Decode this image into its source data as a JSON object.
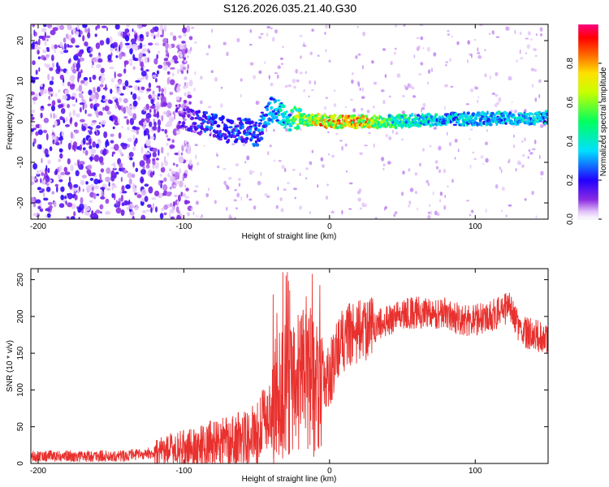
{
  "title": "S126.2026.035.21.40.G30",
  "chart_data": [
    {
      "type": "heatmap",
      "xlabel": "Height of straight line (km)",
      "ylabel": "Frequency (Hz)",
      "xlim": [
        -205,
        150
      ],
      "ylim": [
        -24,
        24
      ],
      "x_ticks": [
        -200,
        -100,
        0,
        100
      ],
      "y_ticks": [
        -20,
        -10,
        0,
        10,
        20
      ],
      "colorbar": {
        "label": "Normalized spectral amplitude",
        "range": [
          0.0,
          1.0
        ],
        "ticks": [
          0.0,
          0.2,
          0.4,
          0.6,
          0.8
        ]
      },
      "ridge": {
        "x": [
          -100,
          -90,
          -80,
          -70,
          -60,
          -50,
          -40,
          -35,
          -30,
          -20,
          -10,
          0,
          20,
          40,
          60,
          80,
          100,
          120,
          150
        ],
        "freq_hz": [
          1,
          0,
          -1,
          -2,
          -2,
          -3,
          3,
          3,
          1,
          0.5,
          0.5,
          0,
          0,
          0,
          0.3,
          0.5,
          0.7,
          0.8,
          1
        ],
        "amplitude": [
          0.2,
          0.25,
          0.3,
          0.3,
          0.3,
          0.35,
          0.4,
          0.45,
          0.45,
          0.75,
          0.8,
          0.9,
          0.9,
          0.6,
          0.5,
          0.45,
          0.45,
          0.45,
          0.45
        ]
      }
    },
    {
      "type": "line",
      "xlabel": "Height of straight line (km)",
      "ylabel": "SNR (10 * v/v)",
      "xlim": [
        -205,
        150
      ],
      "ylim": [
        0,
        265
      ],
      "x_ticks": [
        -200,
        -100,
        0,
        100
      ],
      "y_ticks": [
        0,
        50,
        100,
        150,
        200,
        250
      ],
      "color": "#e8312e",
      "series": [
        {
          "name": "SNR",
          "x": [
            -205,
            -190,
            -170,
            -150,
            -130,
            -120,
            -110,
            -100,
            -90,
            -80,
            -70,
            -60,
            -50,
            -45,
            -40,
            -35,
            -30,
            -25,
            -20,
            -15,
            -10,
            -5,
            0,
            5,
            10,
            20,
            30,
            40,
            50,
            60,
            70,
            80,
            90,
            100,
            110,
            120,
            125,
            130,
            140,
            150
          ],
          "values": [
            10,
            10,
            10,
            10,
            12,
            15,
            20,
            20,
            22,
            28,
            30,
            35,
            40,
            60,
            70,
            90,
            110,
            120,
            130,
            140,
            120,
            110,
            120,
            150,
            170,
            180,
            185,
            195,
            205,
            205,
            205,
            205,
            195,
            195,
            200,
            210,
            215,
            180,
            175,
            170
          ]
        }
      ]
    }
  ]
}
